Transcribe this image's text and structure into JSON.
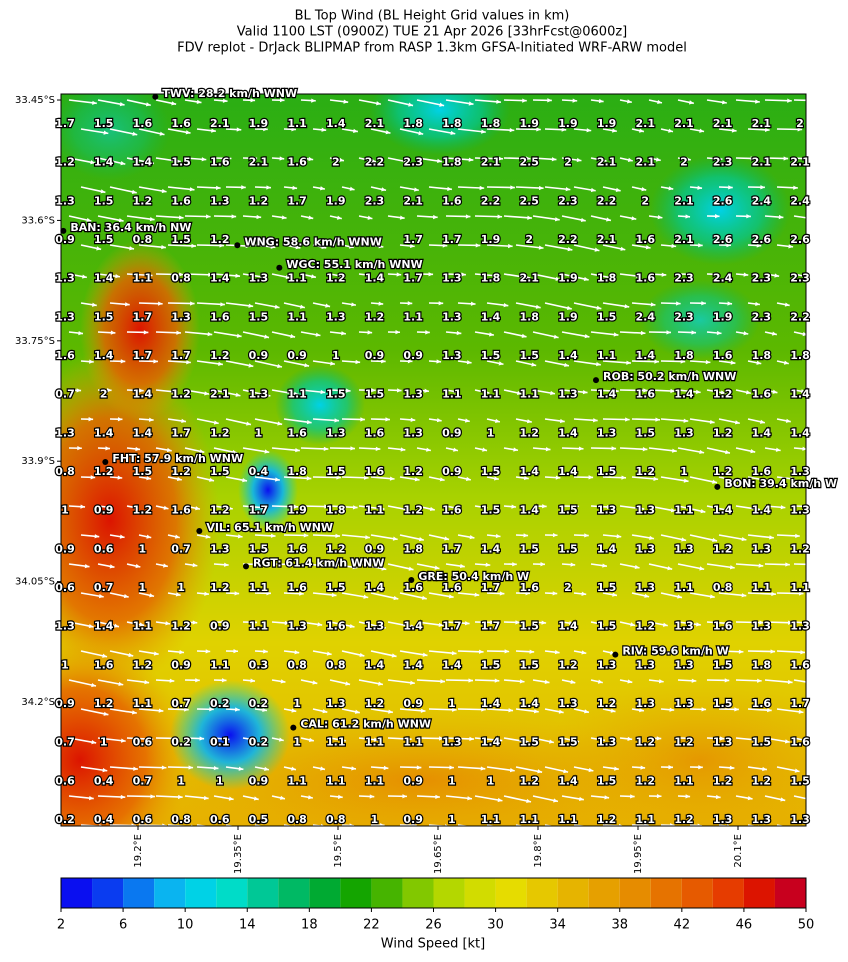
{
  "title_lines": [
    "BL Top Wind (BL Height Grid values in km)",
    "Valid 1100 LST (0900Z) TUE 21 Apr 2026 [33hrFcst@0600z]",
    "FDV replot - DrJack BLIPMAP from RASP 1.3km GFSA-Initiated WRF-ARW model"
  ],
  "map": {
    "xlim": [
      19.0845,
      20.202
    ],
    "ylim": [
      33.4425,
      34.3545
    ],
    "xticks": [
      {
        "value": 19.2,
        "label": "19.2°E"
      },
      {
        "value": 19.35,
        "label": "19.35°E"
      },
      {
        "value": 19.5,
        "label": "19.5°E"
      },
      {
        "value": 19.65,
        "label": "19.65°E"
      },
      {
        "value": 19.8,
        "label": "19.8°E"
      },
      {
        "value": 19.95,
        "label": "19.95°E"
      },
      {
        "value": 20.1,
        "label": "20.1°E"
      }
    ],
    "yticks": [
      {
        "value": 33.45,
        "label": "33.45°S"
      },
      {
        "value": 33.6,
        "label": "33.6°S"
      },
      {
        "value": 33.75,
        "label": "33.75°S"
      },
      {
        "value": 33.9,
        "label": "33.9°S"
      },
      {
        "value": 34.05,
        "label": "34.05°S"
      },
      {
        "value": 34.2,
        "label": "34.2°S"
      }
    ],
    "grid_values": [
      [
        1.7,
        1.5,
        1.6,
        1.6,
        2.1,
        1.9,
        1.1,
        1.4,
        2.1,
        1.8,
        1.8,
        1.8,
        1.9,
        1.9,
        1.9,
        2.1,
        2.1,
        2.1,
        2.1,
        2.0
      ],
      [
        1.2,
        1.4,
        1.4,
        1.5,
        1.6,
        2.1,
        1.6,
        2.0,
        2.2,
        2.3,
        1.8,
        2.1,
        2.5,
        2.0,
        2.1,
        2.1,
        2.0,
        2.3,
        2.1,
        2.1
      ],
      [
        1.3,
        1.5,
        1.2,
        1.6,
        1.3,
        1.2,
        1.7,
        1.9,
        2.3,
        2.1,
        1.6,
        2.2,
        2.5,
        2.3,
        2.2,
        2.0,
        2.1,
        2.6,
        2.4,
        2.4
      ],
      [
        0.9,
        1.5,
        0.8,
        1.5,
        1.2,
        null,
        null,
        null,
        null,
        1.7,
        1.7,
        1.9,
        2.0,
        2.2,
        2.1,
        1.6,
        2.1,
        2.6,
        2.6,
        2.6
      ],
      [
        1.3,
        1.4,
        1.1,
        0.8,
        1.4,
        1.3,
        1.1,
        1.2,
        1.4,
        1.7,
        1.3,
        1.8,
        2.1,
        1.9,
        1.8,
        1.6,
        2.3,
        2.4,
        2.3,
        2.3
      ],
      [
        1.3,
        1.5,
        1.7,
        1.3,
        1.6,
        1.5,
        1.1,
        1.3,
        1.2,
        1.1,
        1.3,
        1.4,
        1.8,
        1.9,
        1.5,
        2.4,
        2.3,
        1.9,
        2.3,
        2.2
      ],
      [
        1.6,
        1.4,
        1.7,
        1.7,
        1.2,
        0.9,
        0.9,
        1.0,
        0.9,
        0.9,
        1.3,
        1.5,
        1.5,
        1.4,
        1.1,
        1.4,
        1.8,
        1.6,
        1.8,
        1.8
      ],
      [
        0.7,
        2.0,
        1.4,
        1.2,
        2.1,
        1.3,
        1.1,
        1.5,
        1.5,
        1.3,
        1.1,
        1.1,
        1.1,
        1.3,
        1.4,
        1.6,
        1.4,
        1.2,
        1.6,
        1.4
      ],
      [
        1.3,
        1.4,
        1.4,
        1.7,
        1.2,
        1.0,
        1.6,
        1.3,
        1.6,
        1.3,
        0.9,
        1.0,
        1.2,
        1.4,
        1.3,
        1.5,
        1.3,
        1.2,
        1.4,
        1.4
      ],
      [
        0.8,
        1.2,
        1.5,
        1.2,
        1.5,
        0.4,
        1.8,
        1.5,
        1.6,
        1.2,
        0.9,
        1.5,
        1.4,
        1.4,
        1.5,
        1.2,
        1.0,
        1.2,
        1.6,
        1.3
      ],
      [
        1.0,
        0.9,
        1.2,
        1.6,
        1.2,
        1.7,
        1.9,
        1.8,
        1.1,
        1.2,
        1.6,
        1.5,
        1.4,
        1.5,
        1.3,
        1.3,
        1.1,
        1.4,
        1.4,
        1.3
      ],
      [
        0.9,
        0.6,
        1.0,
        0.7,
        1.3,
        1.5,
        1.6,
        1.2,
        0.9,
        1.8,
        1.7,
        1.4,
        1.5,
        1.5,
        1.4,
        1.3,
        1.3,
        1.2,
        1.3,
        1.2
      ],
      [
        0.6,
        0.7,
        1.0,
        1.0,
        1.2,
        1.1,
        1.6,
        1.5,
        1.4,
        1.6,
        1.6,
        1.7,
        1.6,
        2.0,
        1.5,
        1.3,
        1.1,
        0.8,
        1.1,
        1.1
      ],
      [
        1.3,
        1.4,
        1.1,
        1.2,
        0.9,
        1.1,
        1.3,
        1.6,
        1.3,
        1.4,
        1.7,
        1.7,
        1.5,
        1.4,
        1.5,
        1.2,
        1.3,
        1.6,
        1.3,
        1.3
      ],
      [
        1.0,
        1.6,
        1.2,
        0.9,
        1.1,
        0.3,
        0.8,
        0.8,
        1.4,
        1.4,
        1.4,
        1.5,
        1.5,
        1.2,
        1.3,
        1.3,
        1.3,
        1.5,
        1.8,
        1.6
      ],
      [
        0.9,
        1.2,
        1.1,
        0.7,
        0.2,
        0.2,
        1.0,
        1.3,
        1.2,
        0.9,
        1.0,
        1.4,
        1.4,
        1.3,
        1.2,
        1.3,
        1.3,
        1.5,
        1.6,
        1.7
      ],
      [
        0.7,
        1.0,
        0.6,
        0.2,
        0.1,
        0.2,
        1.0,
        1.1,
        1.1,
        1.1,
        1.3,
        1.4,
        1.5,
        1.5,
        1.3,
        1.2,
        1.2,
        1.3,
        1.5,
        1.6
      ],
      [
        0.6,
        0.4,
        0.7,
        1.0,
        1.0,
        0.9,
        1.1,
        1.1,
        1.1,
        0.9,
        1.0,
        1.0,
        1.2,
        1.4,
        1.5,
        1.2,
        1.1,
        1.2,
        1.2,
        1.5
      ],
      [
        0.2,
        0.4,
        0.6,
        0.8,
        0.6,
        0.5,
        0.8,
        0.8,
        1.0,
        0.9,
        1.0,
        1.1,
        1.1,
        1.1,
        1.2,
        1.1,
        1.2,
        1.3,
        1.3,
        1.3
      ]
    ],
    "stations": [
      {
        "label": "TWV: 28.2 km/h WNW",
        "lon": 19.226,
        "lat": 33.446
      },
      {
        "label": "BAN: 36.4 km/h NW",
        "lon": 19.088,
        "lat": 33.613
      },
      {
        "label": "WNG: 58.6 km/h WNW",
        "lon": 19.349,
        "lat": 33.631
      },
      {
        "label": "WGC: 55.1 km/h WNW",
        "lon": 19.412,
        "lat": 33.659
      },
      {
        "label": "ROB: 50.2 km/h WNW",
        "lon": 19.887,
        "lat": 33.799
      },
      {
        "label": "FHT: 57.9 km/h WNW",
        "lon": 19.151,
        "lat": 33.901
      },
      {
        "label": "BON: 39.4 km/h W",
        "lon": 20.069,
        "lat": 33.932
      },
      {
        "label": "VIL: 65.1 km/h WNW",
        "lon": 19.292,
        "lat": 33.987
      },
      {
        "label": "RGT: 61.4 km/h WNW",
        "lon": 19.362,
        "lat": 34.031
      },
      {
        "label": "GRE: 50.4 km/h W",
        "lon": 19.61,
        "lat": 34.048
      },
      {
        "label": "RIV: 59.6 km/h W",
        "lon": 19.916,
        "lat": 34.141
      },
      {
        "label": "CAL: 61.2 km/h WNW",
        "lon": 19.433,
        "lat": 34.232
      }
    ]
  },
  "colorbar": {
    "label": "Wind Speed [kt]",
    "lim": [
      2,
      50
    ],
    "ticks": [
      2,
      6,
      10,
      14,
      18,
      22,
      26,
      30,
      34,
      38,
      42,
      46,
      50
    ],
    "bounds": [
      2,
      4,
      6,
      8,
      10,
      12,
      14,
      16,
      18,
      20,
      22,
      24,
      26,
      28,
      30,
      32,
      34,
      36,
      38,
      40,
      42,
      44,
      46,
      48,
      50
    ],
    "colors": [
      "#0a0ff0",
      "#0a3cf0",
      "#0a78f0",
      "#0ab4f0",
      "#00d2e6",
      "#00dcc8",
      "#00c896",
      "#00b964",
      "#00aa32",
      "#14a500",
      "#46b400",
      "#82c800",
      "#b4d700",
      "#d2dc00",
      "#e6dc00",
      "#e6c800",
      "#e6b400",
      "#e6a000",
      "#e68c00",
      "#e67300",
      "#e65a00",
      "#e63c00",
      "#dc1400",
      "#c8001e"
    ]
  }
}
